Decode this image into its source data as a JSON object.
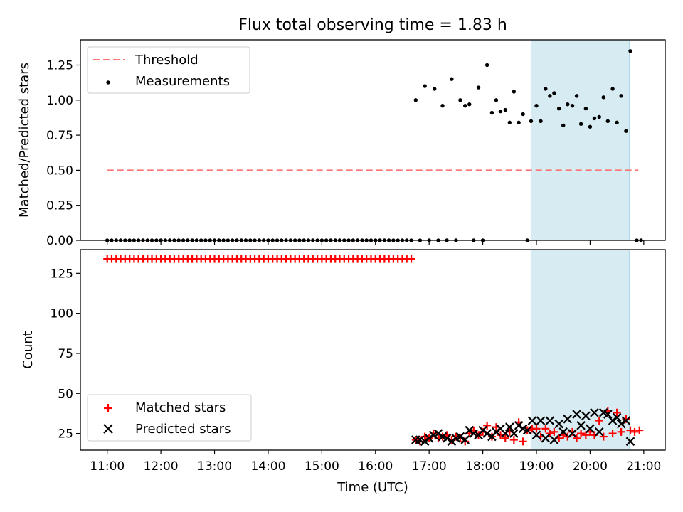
{
  "chart_data": [
    {
      "type": "scatter",
      "title": "Flux total observing time = 1.83 h",
      "xlabel": "",
      "ylabel": "Matched/Predicted stars",
      "xlim": [
        10.5,
        21.4
      ],
      "ylim": [
        0.0,
        1.43
      ],
      "yticks": [
        0.0,
        0.25,
        0.5,
        0.75,
        1.0,
        1.25
      ],
      "ytick_labels": [
        "0.00",
        "0.25",
        "0.50",
        "0.75",
        "1.00",
        "1.25"
      ],
      "highlight_span": [
        18.9,
        20.73
      ],
      "threshold": {
        "name": "Threshold",
        "value": 0.5,
        "x_range": [
          11.0,
          20.9
        ],
        "color": "#ff7575"
      },
      "legend": {
        "location": "upper-left",
        "entries": [
          "Threshold",
          "Measurements"
        ]
      },
      "series": [
        {
          "name": "Measurements",
          "color": "#000000",
          "x": [
            16.75,
            16.92,
            17.1,
            17.25,
            17.42,
            17.58,
            17.67,
            17.75,
            17.92,
            18.08,
            18.17,
            18.25,
            18.33,
            18.42,
            18.5,
            18.58,
            18.67,
            18.75,
            18.9,
            19.0,
            19.08,
            19.17,
            19.25,
            19.33,
            19.42,
            19.5,
            19.58,
            19.67,
            19.75,
            19.83,
            19.92,
            20.0,
            20.08,
            20.17,
            20.25,
            20.33,
            20.42,
            20.5,
            20.58,
            20.67,
            20.75
          ],
          "y": [
            1.0,
            1.1,
            1.08,
            0.96,
            1.15,
            1.0,
            0.96,
            0.97,
            1.09,
            1.25,
            0.91,
            1.0,
            0.92,
            0.93,
            0.84,
            1.06,
            0.84,
            0.9,
            0.85,
            0.96,
            0.85,
            1.08,
            1.03,
            1.05,
            0.94,
            0.82,
            0.97,
            0.96,
            1.03,
            0.83,
            0.94,
            0.81,
            0.87,
            0.88,
            1.02,
            0.85,
            1.08,
            0.84,
            1.03,
            0.78,
            1.35
          ]
        },
        {
          "name": "Measurements (zero)",
          "color": "#000000",
          "x": [
            11.0,
            11.083,
            11.167,
            11.25,
            11.333,
            11.417,
            11.5,
            11.583,
            11.667,
            11.75,
            11.833,
            11.917,
            12.0,
            12.083,
            12.167,
            12.25,
            12.333,
            12.417,
            12.5,
            12.583,
            12.667,
            12.75,
            12.833,
            12.917,
            13.0,
            13.083,
            13.167,
            13.25,
            13.333,
            13.417,
            13.5,
            13.583,
            13.667,
            13.75,
            13.833,
            13.917,
            14.0,
            14.083,
            14.167,
            14.25,
            14.333,
            14.417,
            14.5,
            14.583,
            14.667,
            14.75,
            14.833,
            14.917,
            15.0,
            15.083,
            15.167,
            15.25,
            15.333,
            15.417,
            15.5,
            15.583,
            15.667,
            15.75,
            15.833,
            15.917,
            16.0,
            16.083,
            16.167,
            16.25,
            16.333,
            16.417,
            16.5,
            16.583,
            16.667,
            16.83,
            17.0,
            17.17,
            17.33,
            17.5,
            17.83,
            18.0,
            18.83,
            20.87,
            20.95
          ],
          "y": [
            0,
            0,
            0,
            0,
            0,
            0,
            0,
            0,
            0,
            0,
            0,
            0,
            0,
            0,
            0,
            0,
            0,
            0,
            0,
            0,
            0,
            0,
            0,
            0,
            0,
            0,
            0,
            0,
            0,
            0,
            0,
            0,
            0,
            0,
            0,
            0,
            0,
            0,
            0,
            0,
            0,
            0,
            0,
            0,
            0,
            0,
            0,
            0,
            0,
            0,
            0,
            0,
            0,
            0,
            0,
            0,
            0,
            0,
            0,
            0,
            0,
            0,
            0,
            0,
            0,
            0,
            0,
            0,
            0,
            0,
            0,
            0,
            0,
            0,
            0,
            0,
            0,
            0,
            0
          ]
        }
      ]
    },
    {
      "type": "scatter",
      "title": "",
      "xlabel": "Time (UTC)",
      "ylabel": "Count",
      "xlim": [
        10.5,
        21.4
      ],
      "ylim": [
        14.6,
        139.8
      ],
      "xticks": [
        11,
        12,
        13,
        14,
        15,
        16,
        17,
        18,
        19,
        20,
        21
      ],
      "xtick_labels": [
        "11:00",
        "12:00",
        "13:00",
        "14:00",
        "15:00",
        "16:00",
        "17:00",
        "18:00",
        "19:00",
        "20:00",
        "21:00"
      ],
      "yticks": [
        25,
        50,
        75,
        100,
        125
      ],
      "ytick_labels": [
        "25",
        "50",
        "75",
        "100",
        "125"
      ],
      "highlight_span": [
        18.9,
        20.73
      ],
      "legend": {
        "location": "lower-left",
        "entries": [
          "Matched stars",
          "Predicted stars"
        ]
      },
      "series": [
        {
          "name": "Matched stars",
          "marker": "plus",
          "color": "#ff0000",
          "x": [
            11.0,
            11.083,
            11.167,
            11.25,
            11.333,
            11.417,
            11.5,
            11.583,
            11.667,
            11.75,
            11.833,
            11.917,
            12.0,
            12.083,
            12.167,
            12.25,
            12.333,
            12.417,
            12.5,
            12.583,
            12.667,
            12.75,
            12.833,
            12.917,
            13.0,
            13.083,
            13.167,
            13.25,
            13.333,
            13.417,
            13.5,
            13.583,
            13.667,
            13.75,
            13.833,
            13.917,
            14.0,
            14.083,
            14.167,
            14.25,
            14.333,
            14.417,
            14.5,
            14.583,
            14.667,
            14.75,
            14.833,
            14.917,
            15.0,
            15.083,
            15.167,
            15.25,
            15.333,
            15.417,
            15.5,
            15.583,
            15.667,
            15.75,
            15.833,
            15.917,
            16.0,
            16.083,
            16.167,
            16.25,
            16.333,
            16.417,
            16.5,
            16.583,
            16.667,
            16.75,
            16.83,
            16.92,
            17.0,
            17.08,
            17.17,
            17.25,
            17.33,
            17.42,
            17.5,
            17.58,
            17.67,
            17.75,
            17.83,
            17.92,
            18.0,
            18.08,
            18.17,
            18.25,
            18.33,
            18.42,
            18.5,
            18.58,
            18.67,
            18.75,
            18.83,
            18.92,
            19.0,
            19.08,
            19.17,
            19.25,
            19.33,
            19.42,
            19.5,
            19.58,
            19.67,
            19.75,
            19.83,
            19.92,
            20.0,
            20.08,
            20.17,
            20.25,
            20.33,
            20.42,
            20.5,
            20.58,
            20.67,
            20.75,
            20.83,
            20.92
          ],
          "y": [
            134,
            134,
            134,
            134,
            134,
            134,
            134,
            134,
            134,
            134,
            134,
            134,
            134,
            134,
            134,
            134,
            134,
            134,
            134,
            134,
            134,
            134,
            134,
            134,
            134,
            134,
            134,
            134,
            134,
            134,
            134,
            134,
            134,
            134,
            134,
            134,
            134,
            134,
            134,
            134,
            134,
            134,
            134,
            134,
            134,
            134,
            134,
            134,
            134,
            134,
            134,
            134,
            134,
            134,
            134,
            134,
            134,
            134,
            134,
            134,
            134,
            134,
            134,
            134,
            134,
            134,
            134,
            134,
            134,
            21,
            20,
            23,
            22,
            25,
            22,
            23,
            24,
            21,
            23,
            22,
            20,
            25,
            27,
            24,
            26,
            30,
            23,
            29,
            24,
            22,
            26,
            21,
            32,
            20,
            27,
            28,
            28,
            23,
            28,
            25,
            26,
            22,
            24,
            23,
            26,
            22,
            25,
            24,
            26,
            24,
            33,
            23,
            39,
            25,
            38,
            26,
            34,
            27,
            26,
            27
          ]
        },
        {
          "name": "Predicted stars",
          "marker": "x",
          "color": "#000000",
          "x": [
            16.75,
            16.83,
            16.92,
            17.0,
            17.08,
            17.17,
            17.25,
            17.33,
            17.42,
            17.5,
            17.58,
            17.67,
            17.75,
            17.83,
            17.92,
            18.0,
            18.08,
            18.17,
            18.25,
            18.33,
            18.42,
            18.5,
            18.58,
            18.67,
            18.75,
            18.83,
            18.92,
            19.0,
            19.08,
            19.17,
            19.25,
            19.33,
            19.42,
            19.5,
            19.58,
            19.67,
            19.75,
            19.83,
            19.92,
            20.0,
            20.08,
            20.17,
            20.25,
            20.33,
            20.42,
            20.5,
            20.58,
            20.67,
            20.75
          ],
          "y": [
            21,
            21,
            20,
            22,
            24,
            25,
            23,
            22,
            20,
            22,
            23,
            21,
            27,
            25,
            24,
            27,
            25,
            23,
            26,
            28,
            25,
            29,
            25,
            30,
            28,
            27,
            33,
            24,
            33,
            22,
            33,
            21,
            31,
            26,
            34,
            25,
            37,
            30,
            36,
            28,
            38,
            26,
            38,
            37,
            33,
            35,
            31,
            33,
            20
          ]
        }
      ]
    }
  ]
}
